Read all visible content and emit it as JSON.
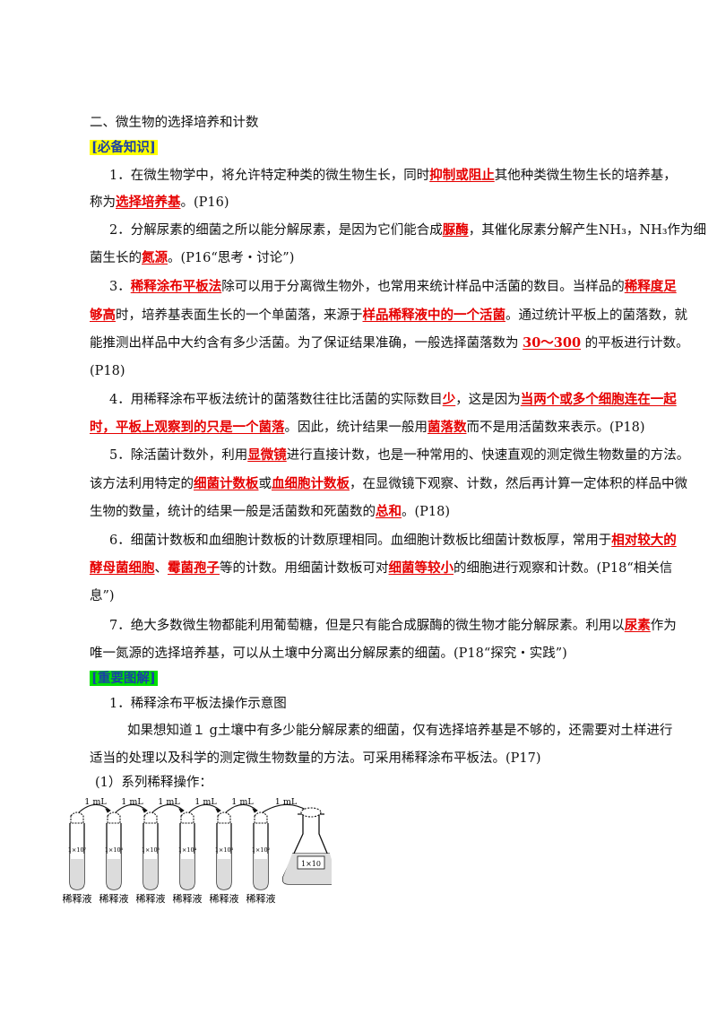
{
  "heading": "二、微生物的选择培养和计数",
  "tag1": "[必备知识]",
  "p1": {
    "a": "1．在微生物学中，将允许特定种类的微生物生长，同时",
    "k1": "抑制或阻止",
    "b": "其他种类微生物生长的培养基，",
    "c": "称为",
    "k2": "选择培养基",
    "d": "。(P16)"
  },
  "p2": {
    "a": "2．分解尿素的细菌之所以能分解尿素，是因为它们能合成",
    "k1": "脲酶",
    "b": "，其催化尿素分解产生NH₃，NH₃作为细",
    "c": "菌生长的",
    "k2": "氮源",
    "d": "。(P16“思考・讨论”)"
  },
  "p3": {
    "k1": "稀释涂布平板法",
    "a": "除可以用于分离微生物外，也常用来统计样品中活菌的数目。当样品的",
    "k2a": "稀释度足",
    "k2b": "够高",
    "b": "时，培养基表面生长的一个单菌落，来源于",
    "k3": "样品稀释液中的一个活菌",
    "c": "。通过统计平板上的菌落数，就",
    "d": "能推测出样品中大约含有多少活菌。为了保证结果准确，一般选择菌落数为",
    "k4": "30～300",
    "e": "的平板进行计数。",
    "num": "3．",
    "f": "(P18)"
  },
  "p4": {
    "a": "4．用稀释涂布平板法统计的菌落数往往比活菌的实际数目",
    "k1": "少",
    "b": "，这是因为",
    "k2a": "当两个或多个细胞连在一起",
    "k2b": "时，平板上观察到的只是一个菌落",
    "c": "。因此，统计结果一般用",
    "k3": "菌落数",
    "d": "而不是用活菌数来表示。(P18)"
  },
  "p5": {
    "a": "5．除活菌计数外，利用",
    "k1": "显微镜",
    "b": "进行直接计数，也是一种常用的、快速直观的测定微生物数量的方法。",
    "c": "该方法利用特定的",
    "k2": "细菌计数板",
    "d": "或",
    "k3": "血细胞计数板",
    "e": "，在显微镜下观察、计数，然后再计算一定体积的样品中微",
    "f": "生物的数量，统计的结果一般是活菌数和死菌数的",
    "k4": "总和",
    "g": "。(P18)"
  },
  "p6": {
    "a": "6．细菌计数板和血细胞计数板的计数原理相同。血细胞计数板比细菌计数板厚，常用于",
    "k1a": "相对较大的",
    "k1b": "酵母菌细胞",
    "b": "、",
    "k2": "霉菌孢子",
    "c": "等的计数。用细菌计数板可对",
    "k3": "细菌等较小",
    "d": "的细胞进行观察和计数。(P18“相关信",
    "e": "息”)"
  },
  "p7": {
    "a": "7．绝大多数微生物都能利用葡萄糖，但是只有能合成脲酶的微生物才能分解尿素。利用以",
    "k1": "尿素",
    "b": "作为",
    "c": "唯一氮源的选择培养基，可以从土壤中分离出分解尿素的细菌。(P18“探究・实践”)"
  },
  "tag2": "[重要图解]",
  "sec1": "1．稀释涂布平板法操作示意图",
  "intro1": "如果想知道１ g土壤中有多少能分解尿素的细菌，仅有选择培养基是不够的，还需要对土样进行",
  "intro2": "适当的处理以及科学的测定微生物数量的方法。可采用稀释涂布平板法。(P17)",
  "sub1": "(1）系列稀释操作：",
  "figure": {
    "arrow_label": "1 mL",
    "tubes": [
      "1×10⁷",
      "1×10⁶",
      "1×10⁵",
      "1×10⁴",
      "1×10³",
      "1×10²"
    ],
    "flask": "1×10",
    "tube_caption": "稀释液"
  }
}
